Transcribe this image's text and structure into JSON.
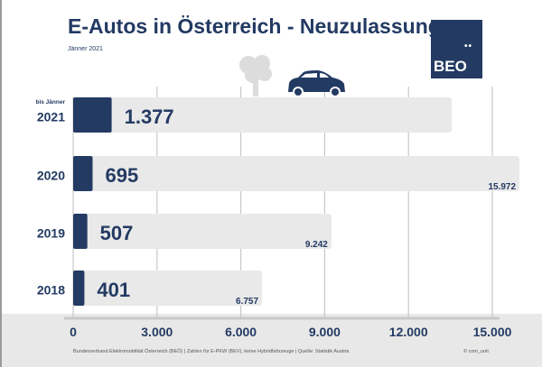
{
  "header": {
    "title": "E-Autos in Österreich - Neuzulassungen",
    "subtitle": "Jänner 2021",
    "logo_text": "BEO"
  },
  "footer": {
    "source": "Bundesverband Elektromobilität Österreich (BEÖ) | Zahlen für E-PKW (BEV), keine Hybridfahrzeuge | Quelle: Statistik Austria",
    "copyright": "© com_unit"
  },
  "colors": {
    "accent": "#233a63",
    "track": "#e9e9e9",
    "grid": "#c8c8c8"
  },
  "icons": [
    "tree-icon",
    "car-icon"
  ],
  "chart_data": {
    "type": "bar",
    "orientation": "horizontal",
    "categories": [
      "2021",
      "2020",
      "2019",
      "2018"
    ],
    "category_notes": [
      "bis Jänner",
      "",
      "",
      ""
    ],
    "series": [
      {
        "values": [
          1377,
          695,
          507,
          401
        ],
        "labels": [
          "1.377",
          "695",
          "507",
          "401"
        ]
      },
      {
        "values": [
          null,
          15972,
          9242,
          6757
        ],
        "labels": [
          "",
          "15.972",
          "9.242",
          "6.757"
        ]
      }
    ],
    "xlim": [
      0,
      15000
    ],
    "xticks": [
      0,
      3000,
      6000,
      9000,
      12000,
      15000
    ],
    "xtick_labels": [
      "0",
      "3.000",
      "6.000",
      "9.000",
      "12.000",
      "15.000"
    ],
    "grid": true
  }
}
